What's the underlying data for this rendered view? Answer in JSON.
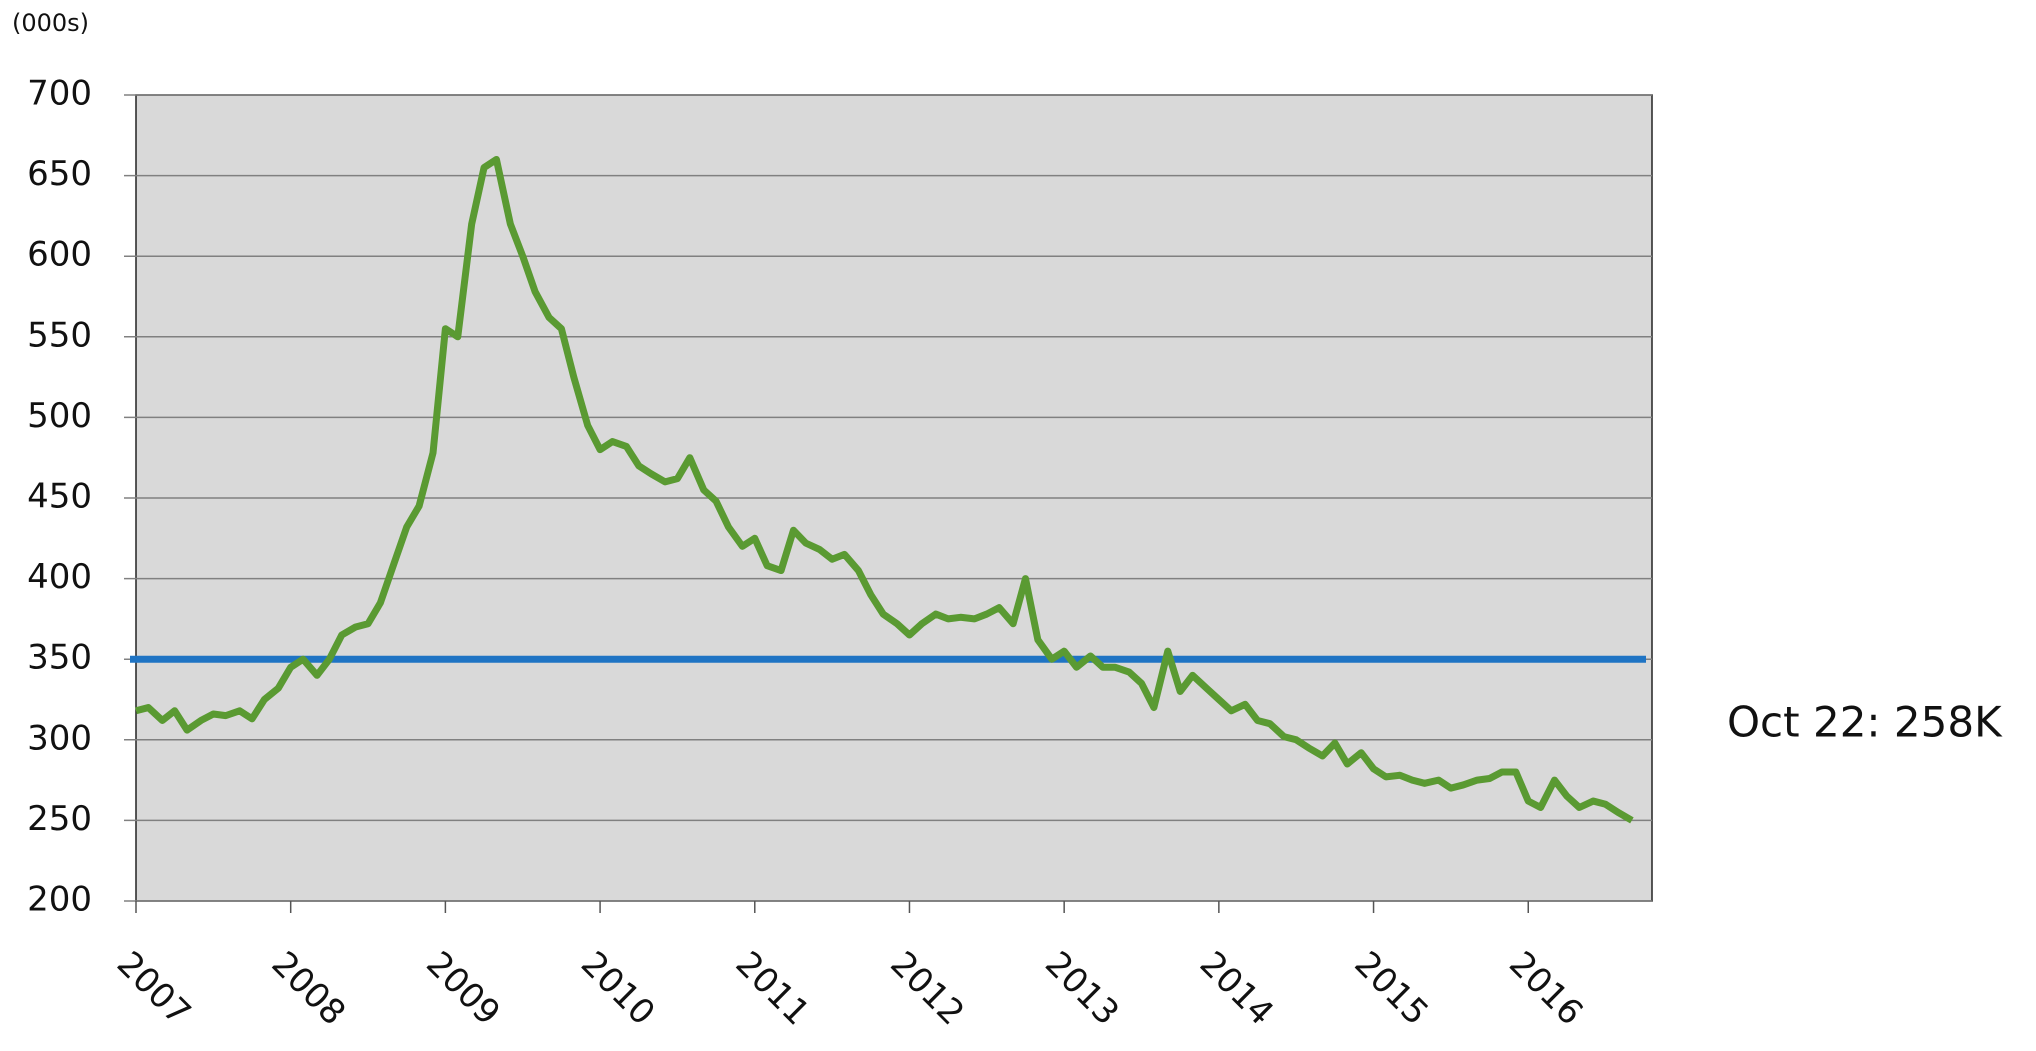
{
  "chart_data": {
    "type": "line",
    "y_unit_label": "(000s)",
    "annotation": "Oct 22: 258K",
    "annotation_color": "#4a7f2f",
    "x": [
      2007.0,
      2007.08,
      2007.17,
      2007.25,
      2007.33,
      2007.42,
      2007.5,
      2007.58,
      2007.67,
      2007.75,
      2007.83,
      2007.92,
      2008.0,
      2008.08,
      2008.17,
      2008.25,
      2008.33,
      2008.42,
      2008.5,
      2008.58,
      2008.67,
      2008.75,
      2008.83,
      2008.92,
      2009.0,
      2009.08,
      2009.17,
      2009.25,
      2009.33,
      2009.42,
      2009.5,
      2009.58,
      2009.67,
      2009.75,
      2009.83,
      2009.92,
      2010.0,
      2010.08,
      2010.17,
      2010.25,
      2010.33,
      2010.42,
      2010.5,
      2010.58,
      2010.67,
      2010.75,
      2010.83,
      2010.92,
      2011.0,
      2011.08,
      2011.17,
      2011.25,
      2011.33,
      2011.42,
      2011.5,
      2011.58,
      2011.67,
      2011.75,
      2011.83,
      2011.92,
      2012.0,
      2012.08,
      2012.17,
      2012.25,
      2012.33,
      2012.42,
      2012.5,
      2012.58,
      2012.67,
      2012.75,
      2012.83,
      2012.92,
      2013.0,
      2013.08,
      2013.17,
      2013.25,
      2013.33,
      2013.42,
      2013.5,
      2013.58,
      2013.67,
      2013.75,
      2013.83,
      2013.92,
      2014.0,
      2014.08,
      2014.17,
      2014.25,
      2014.33,
      2014.42,
      2014.5,
      2014.58,
      2014.67,
      2014.75,
      2014.83,
      2014.92,
      2015.0,
      2015.08,
      2015.17,
      2015.25,
      2015.33,
      2015.42,
      2015.5,
      2015.58,
      2015.67,
      2015.75,
      2015.83,
      2015.92,
      2016.0,
      2016.08,
      2016.17,
      2016.25,
      2016.33,
      2016.42,
      2016.5,
      2016.58,
      2016.67
    ],
    "series": [
      {
        "color": "#5a9a32",
        "values": [
          318,
          320,
          312,
          318,
          306,
          312,
          316,
          315,
          318,
          313,
          325,
          332,
          345,
          350,
          340,
          350,
          365,
          370,
          372,
          385,
          410,
          432,
          445,
          478,
          555,
          550,
          620,
          655,
          660,
          620,
          600,
          578,
          562,
          555,
          525,
          495,
          480,
          485,
          482,
          470,
          465,
          460,
          462,
          475,
          455,
          448,
          432,
          420,
          425,
          408,
          405,
          430,
          422,
          418,
          412,
          415,
          405,
          390,
          378,
          372,
          365,
          372,
          378,
          375,
          376,
          375,
          378,
          382,
          372,
          400,
          362,
          350,
          355,
          345,
          352,
          345,
          345,
          342,
          335,
          320,
          355,
          330,
          340,
          332,
          325,
          318,
          322,
          312,
          310,
          302,
          300,
          295,
          290,
          298,
          285,
          292,
          282,
          277,
          278,
          275,
          273,
          275,
          270,
          272,
          275,
          276,
          280,
          280,
          262,
          258,
          275,
          265,
          258,
          262,
          260,
          255,
          250
        ]
      }
    ],
    "reference_line": {
      "value": 350,
      "color": "#1f74c4"
    },
    "xlim": [
      2007,
      2016.8
    ],
    "xticks": [
      2007,
      2008,
      2009,
      2010,
      2011,
      2012,
      2013,
      2014,
      2015,
      2016
    ],
    "ylim": [
      200,
      700
    ],
    "yticks": [
      200,
      250,
      300,
      350,
      400,
      450,
      500,
      550,
      600,
      650,
      700
    ],
    "grid": true
  }
}
